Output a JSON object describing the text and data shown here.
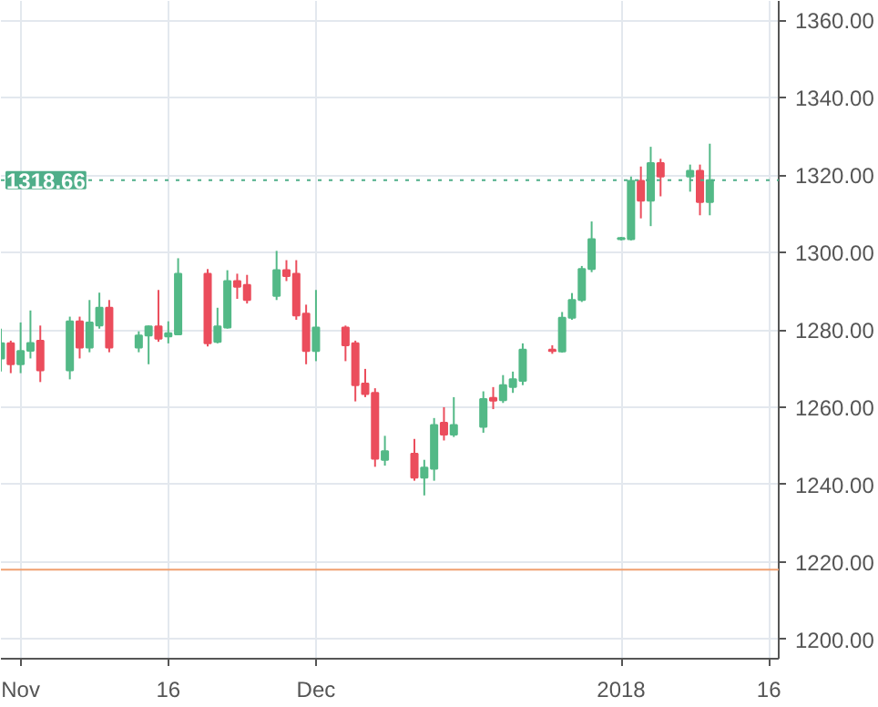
{
  "chart_data": {
    "type": "candlestick",
    "x": [
      "2017-10-30",
      "2017-10-31",
      "2017-11-01",
      "2017-11-02",
      "2017-11-03",
      "2017-11-06",
      "2017-11-07",
      "2017-11-08",
      "2017-11-09",
      "2017-11-10",
      "2017-11-13",
      "2017-11-14",
      "2017-11-15",
      "2017-11-16",
      "2017-11-17",
      "2017-11-20",
      "2017-11-21",
      "2017-11-22",
      "2017-11-23",
      "2017-11-24",
      "2017-11-27",
      "2017-11-28",
      "2017-11-29",
      "2017-11-30",
      "2017-12-01",
      "2017-12-04",
      "2017-12-05",
      "2017-12-06",
      "2017-12-07",
      "2017-12-08",
      "2017-12-11",
      "2017-12-12",
      "2017-12-13",
      "2017-12-14",
      "2017-12-15",
      "2017-12-18",
      "2017-12-19",
      "2017-12-20",
      "2017-12-21",
      "2017-12-22",
      "2017-12-25",
      "2017-12-26",
      "2017-12-27",
      "2017-12-28",
      "2017-12-29",
      "2018-01-01",
      "2018-01-02",
      "2018-01-03",
      "2018-01-04",
      "2018-01-05",
      "2018-01-08",
      "2018-01-09",
      "2018-01-10"
    ],
    "ohlc": [
      [
        1272.6,
        1280.3,
        1269.2,
        1276.5
      ],
      [
        1276.5,
        1277.2,
        1268.8,
        1271.1
      ],
      [
        1271.1,
        1281.9,
        1268.8,
        1274.5
      ],
      [
        1274.6,
        1285.0,
        1272.6,
        1276.6
      ],
      [
        1277.2,
        1281.1,
        1266.5,
        1269.5
      ],
      [
        1269.5,
        1283.4,
        1267.2,
        1282.2
      ],
      [
        1282.2,
        1283.4,
        1272.6,
        1275.4
      ],
      [
        1275.4,
        1287.7,
        1274.2,
        1281.9
      ],
      [
        1281.1,
        1289.6,
        1280.3,
        1285.7
      ],
      [
        1285.7,
        1287.7,
        1274.2,
        1275.4
      ],
      [
        1275.4,
        1279.6,
        1274.2,
        1278.5
      ],
      [
        1278.5,
        1281.1,
        1271.1,
        1280.9
      ],
      [
        1280.9,
        1290.3,
        1276.9,
        1277.7
      ],
      [
        1278.3,
        1282.2,
        1276.5,
        1279.1
      ],
      [
        1278.8,
        1298.5,
        1278.8,
        1294.5
      ],
      [
        1294.5,
        1295.7,
        1275.7,
        1276.5
      ],
      [
        1276.9,
        1285.7,
        1276.5,
        1280.9
      ],
      [
        1280.6,
        1295.4,
        1280.3,
        1292.6
      ],
      [
        1292.6,
        1294.5,
        1288.0,
        1291.1
      ],
      [
        1291.6,
        1294.2,
        1286.8,
        1287.7
      ],
      [
        1288.8,
        1300.4,
        1287.7,
        1295.4
      ],
      [
        1295.4,
        1298.0,
        1292.6,
        1293.9
      ],
      [
        1294.5,
        1298.0,
        1282.6,
        1283.7
      ],
      [
        1284.2,
        1286.5,
        1271.1,
        1274.5
      ],
      [
        1274.5,
        1290.3,
        1271.9,
        1280.6
      ],
      [
        1280.6,
        1281.1,
        1271.9,
        1276.0
      ],
      [
        1276.5,
        1277.2,
        1261.5,
        1265.7
      ],
      [
        1266.1,
        1269.9,
        1262.6,
        1263.4
      ],
      [
        1263.7,
        1264.9,
        1244.6,
        1246.7
      ],
      [
        1246.4,
        1252.6,
        1244.9,
        1248.6
      ],
      [
        1248.0,
        1251.8,
        1241.0,
        1241.8
      ],
      [
        1241.8,
        1246.4,
        1237.2,
        1244.4
      ],
      [
        1244.1,
        1257.2,
        1241.0,
        1255.4
      ],
      [
        1256.0,
        1260.0,
        1251.4,
        1252.9
      ],
      [
        1252.9,
        1262.6,
        1252.3,
        1255.4
      ],
      [
        1254.9,
        1264.1,
        1253.4,
        1262.1
      ],
      [
        1262.4,
        1265.2,
        1259.5,
        1261.7
      ],
      [
        1261.8,
        1268.3,
        1261.1,
        1265.7
      ],
      [
        1265.2,
        1269.2,
        1263.7,
        1267.2
      ],
      [
        1266.8,
        1276.5,
        1265.7,
        1274.9
      ],
      [
        1274.9,
        1276.0,
        1273.8,
        1274.5
      ],
      [
        1274.4,
        1284.6,
        1274.1,
        1283.1
      ],
      [
        1283.1,
        1289.5,
        1282.6,
        1287.7
      ],
      [
        1287.7,
        1296.5,
        1287.2,
        1295.7
      ],
      [
        1295.7,
        1308.0,
        1294.9,
        1303.4
      ],
      [
        1303.4,
        1304.0,
        1303.1,
        1303.7
      ],
      [
        1303.4,
        1319.6,
        1303.1,
        1318.5
      ],
      [
        1318.5,
        1322.2,
        1308.8,
        1313.4
      ],
      [
        1313.4,
        1327.3,
        1306.8,
        1323.1
      ],
      [
        1323.1,
        1324.2,
        1314.5,
        1319.6
      ],
      [
        1319.6,
        1322.7,
        1315.7,
        1321.1
      ],
      [
        1321.1,
        1322.7,
        1309.6,
        1313.0
      ],
      [
        1313.0,
        1328.1,
        1309.6,
        1318.66
      ]
    ],
    "colors": [
      "#53b987",
      "#eb4d5c",
      "#53b987",
      "#53b987",
      "#eb4d5c",
      "#53b987",
      "#eb4d5c",
      "#53b987",
      "#53b987",
      "#eb4d5c",
      "#53b987",
      "#53b987",
      "#eb4d5c",
      "#53b987",
      "#53b987",
      "#eb4d5c",
      "#53b987",
      "#53b987",
      "#eb4d5c",
      "#eb4d5c",
      "#53b987",
      "#eb4d5c",
      "#eb4d5c",
      "#eb4d5c",
      "#53b987",
      "#eb4d5c",
      "#eb4d5c",
      "#eb4d5c",
      "#eb4d5c",
      "#53b987",
      "#eb4d5c",
      "#53b987",
      "#53b987",
      "#eb4d5c",
      "#53b987",
      "#53b987",
      "#eb4d5c",
      "#53b987",
      "#53b987",
      "#53b987",
      "#eb4d5c",
      "#53b987",
      "#53b987",
      "#53b987",
      "#53b987",
      "#53b987",
      "#53b987",
      "#eb4d5c",
      "#53b987",
      "#eb4d5c",
      "#53b987",
      "#eb4d5c",
      "#53b987"
    ],
    "xlim": [
      "2017-10-30",
      "2018-01-17"
    ],
    "xticks": [
      {
        "value": "2017-11-01",
        "label": "Nov"
      },
      {
        "value": "2017-11-16",
        "label": "16"
      },
      {
        "value": "2017-12-01",
        "label": "Dec"
      },
      {
        "value": "2018-01-01",
        "label": "2018"
      },
      {
        "value": "2018-01-16",
        "label": "16"
      }
    ],
    "ylim": [
      1195,
      1365
    ],
    "yticks": [
      {
        "value": 1200,
        "label": "1200.00"
      },
      {
        "value": 1220,
        "label": "1220.00"
      },
      {
        "value": 1240,
        "label": "1240.00"
      },
      {
        "value": 1260,
        "label": "1260.00"
      },
      {
        "value": 1280,
        "label": "1280.00"
      },
      {
        "value": 1300,
        "label": "1300.00"
      },
      {
        "value": 1320,
        "label": "1320.00"
      },
      {
        "value": 1340,
        "label": "1340.00"
      },
      {
        "value": 1360,
        "label": "1360.00"
      }
    ],
    "grid": true,
    "ref_lines": [
      {
        "axis": "y",
        "value": 1318.66,
        "label": "1318.66",
        "color": "#4fae89",
        "line_style": "dotted"
      },
      {
        "axis": "y",
        "value": 1218,
        "color": "#f0a070",
        "line_style": "solid"
      }
    ]
  }
}
